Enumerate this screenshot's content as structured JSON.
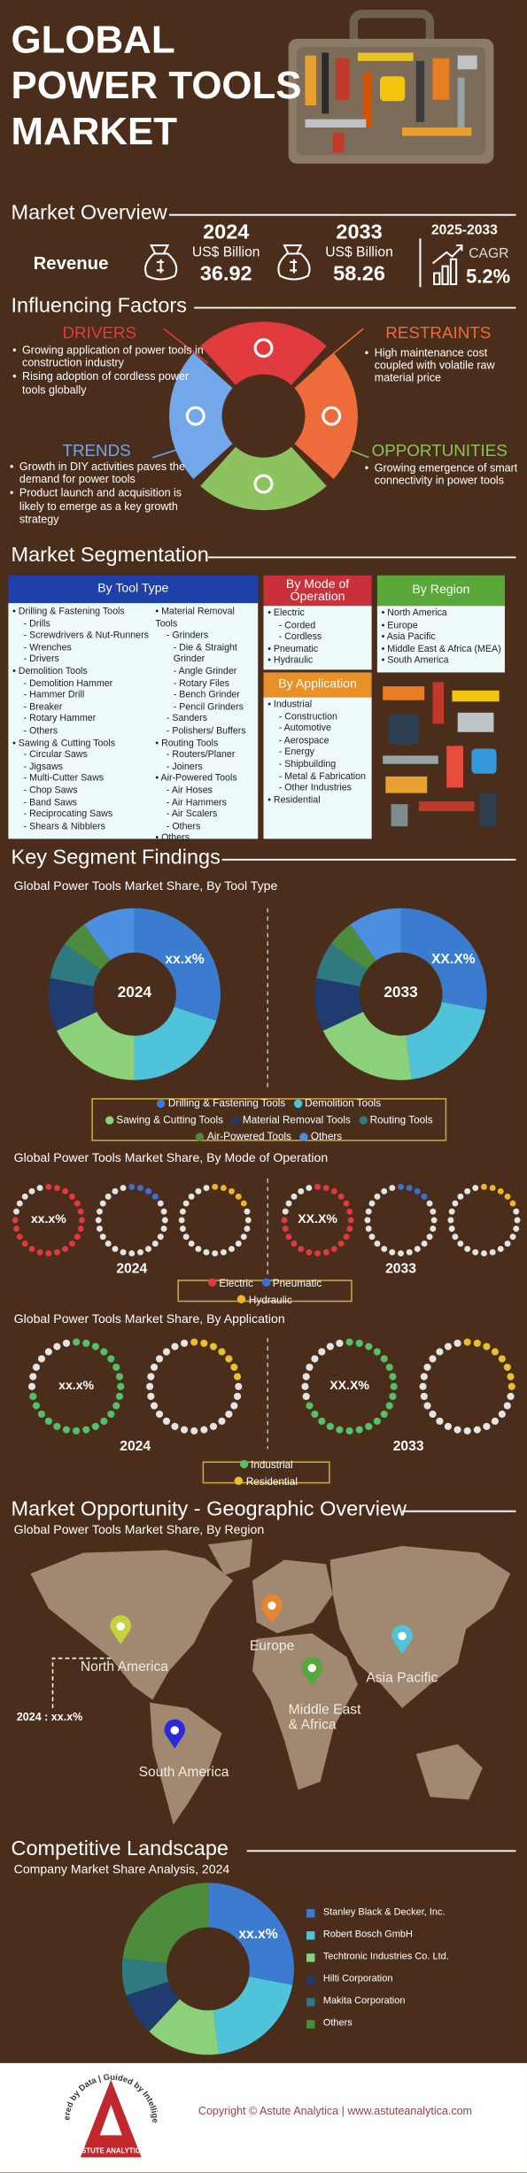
{
  "header": {
    "title_lines": [
      "GLOBAL",
      "POWER TOOLS",
      "MARKET"
    ]
  },
  "overview": {
    "heading": "Market Overview",
    "revenue_label": "Revenue",
    "years": [
      {
        "year": "2024",
        "unit": "US$ Billion",
        "value": "36.92"
      },
      {
        "year": "2033",
        "unit": "US$ Billion",
        "value": "58.26"
      }
    ],
    "cagr_period": "2025-2033",
    "cagr_label": "CAGR",
    "cagr_value": "5.2%"
  },
  "factors": {
    "heading": "Influencing Factors",
    "drivers": {
      "title": "DRIVERS",
      "items": [
        "Growing application of power tools in construction industry",
        "Rising adoption of cordless power tools globally"
      ]
    },
    "restraints": {
      "title": "RESTRAINTS",
      "items": [
        "High maintenance cost coupled with volatile raw material price"
      ]
    },
    "trends": {
      "title": "TRENDS",
      "items": [
        "Growth in DIY activities paves the demand for power tools",
        "Product launch and acquisition is likely to emerge as a key growth strategy"
      ]
    },
    "opportunities": {
      "title": "OPPORTUNITIES",
      "items": [
        "Growing emergence of smart connectivity in power tools"
      ]
    }
  },
  "segmentation": {
    "heading": "Market Segmentation",
    "tool_type": {
      "title": "By Tool Type",
      "columns": [
        [
          {
            "text": "Drilling & Fastening Tools",
            "sub": [
              "Drills",
              "Screwdrivers & Nut-Runners",
              "Wrenches",
              "Drivers"
            ]
          },
          {
            "text": "Demolition Tools",
            "sub": [
              "Demolition Hammer",
              "Hammer Drill",
              "Breaker",
              "Rotary Hammer",
              "Others"
            ]
          },
          {
            "text": "Sawing & Cutting Tools",
            "sub": [
              "Circular Saws",
              "Jigsaws",
              "Multi-Cutter Saws",
              "Chop Saws",
              "Band Saws",
              "Reciprocating Saws",
              "Shears & Nibblers"
            ]
          }
        ],
        [
          {
            "text": "Material Removal Tools",
            "sub": [
              {
                "text": "Grinders",
                "sub": [
                  "Die & Straight Grinder",
                  "Angle Grinder",
                  "Rotary Files",
                  "Bench Grinder",
                  "Pencil Grinders"
                ]
              },
              "Sanders",
              "Polishers/ Buffers"
            ]
          },
          {
            "text": "Routing Tools",
            "sub": [
              "Routers/Planer",
              "Joiners"
            ]
          },
          {
            "text": "Air-Powered Tools",
            "sub": [
              "Air Hoses",
              "Air Hammers",
              "Air Scalers",
              "Others"
            ]
          },
          "Others"
        ]
      ]
    },
    "mode": {
      "title": "By Mode of Operation",
      "items": [
        {
          "text": "Electric",
          "sub": [
            "Corded",
            "Cordless"
          ]
        },
        "Pneumatic",
        "Hydraulic"
      ]
    },
    "region": {
      "title": "By Region",
      "items": [
        "North America",
        "Europe",
        "Asia Pacific",
        "Middle East & Africa (MEA)",
        "South America"
      ]
    },
    "application": {
      "title": "By Application",
      "items": [
        {
          "text": "Industrial",
          "sub": [
            "Construction",
            "Automotive",
            "Aerospace",
            "Energy",
            "Shipbuilding",
            "Metal & Fabrication",
            "Other Industries"
          ]
        },
        "Residential"
      ]
    }
  },
  "key_findings": {
    "heading": "Key Segment Findings"
  },
  "chart_data": [
    {
      "type": "donut",
      "title": "Global Power Tools Market Share, By Tool Type",
      "categories": [
        "Drilling & Fastening Tools",
        "Demolition Tools",
        "Sawing & Cutting Tools",
        "Material Removal Tools",
        "Routing Tools",
        "Air-Powered Tools",
        "Others"
      ],
      "colors": [
        "#3b7bd0",
        "#4ec3d9",
        "#8bd17a",
        "#1f3b70",
        "#2f7a80",
        "#4d8c3d",
        "#4a8fe0"
      ],
      "series": [
        {
          "name": "2024",
          "label": "xx.x%",
          "values": [
            30,
            20,
            18,
            10,
            7,
            5,
            10
          ]
        },
        {
          "name": "2033",
          "label": "XX.X%",
          "values": [
            28,
            20,
            20,
            10,
            7,
            5,
            10
          ]
        }
      ]
    },
    {
      "type": "dot-ring",
      "title": "Global Power Tools Market Share, By Mode of Operation",
      "categories": [
        "Electric",
        "Pneumatic",
        "Hydraulic"
      ],
      "colors": [
        "#e0393e",
        "#3b6fd6",
        "#f0b429"
      ],
      "series": [
        {
          "name": "2024",
          "label": "xx.x%",
          "values": [
            80,
            15,
            20
          ]
        },
        {
          "name": "2033",
          "label": "XX.X%",
          "values": [
            78,
            18,
            22
          ]
        }
      ]
    },
    {
      "type": "dot-ring",
      "title": "Global Power Tools Market Share, By Application",
      "categories": [
        "Industrial",
        "Residential"
      ],
      "colors": [
        "#55c06a",
        "#e8c02a"
      ],
      "series": [
        {
          "name": "2024",
          "label": "xx.x%",
          "values": [
            75,
            25
          ]
        },
        {
          "name": "2033",
          "label": "XX.X%",
          "values": [
            72,
            28
          ]
        }
      ]
    },
    {
      "type": "donut",
      "title": "Company Market Share Analysis, 2024",
      "categories": [
        "Stanley Black & Decker, Inc.",
        "Robert Bosch GmbH",
        "Techtronic Industries Co. Ltd.",
        "Hilti Corporation",
        "Makita Corporation",
        "Others"
      ],
      "colors": [
        "#3b7bd0",
        "#4ec3d9",
        "#8bd17a",
        "#1f3b70",
        "#2f7a80",
        "#4d8c3d"
      ],
      "series": [
        {
          "label": "xx.x%",
          "values": [
            28,
            20,
            14,
            8,
            7,
            23
          ]
        }
      ]
    }
  ],
  "geography": {
    "heading": "Market Opportunity - Geographic Overview",
    "subtitle": "Global Power Tools Market Share, By Region",
    "regions": [
      "North America",
      "Europe",
      "Asia Pacific",
      "Middle East & Africa",
      "South America"
    ],
    "colors": [
      "#c5d43a",
      "#e8852e",
      "#4ec3d9",
      "#55a83c",
      "#2b2bd6"
    ],
    "note": "2024 : xx.x%"
  },
  "competitive": {
    "heading": "Competitive Landscape"
  },
  "footer": {
    "tagline": "Powered by Data | Guided by Intelligence",
    "logo_name": "ASTUTE ANALYTICA",
    "copyright": "Copyright © Astute Analytica | www.astuteanalytica.com"
  }
}
